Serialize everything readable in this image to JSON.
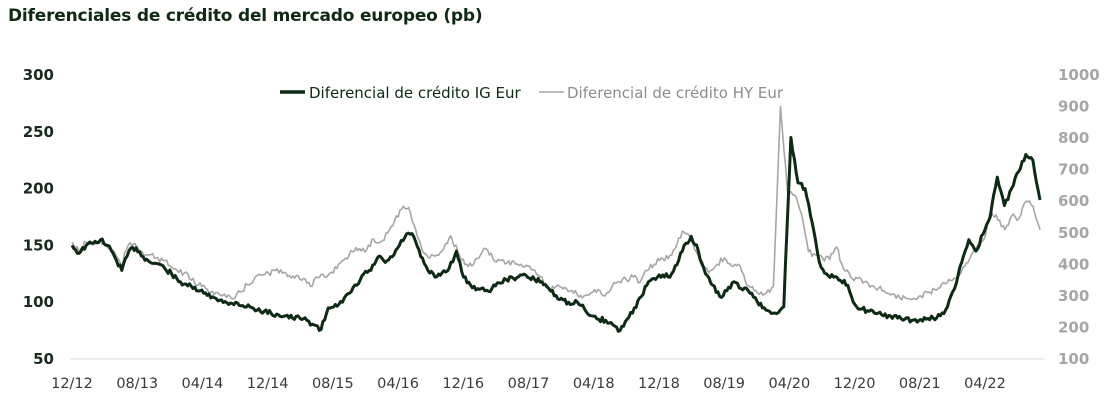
{
  "title": "Diferenciales de crédito del mercado europeo (pb)",
  "colors": {
    "ig": "#0d2a14",
    "hy": "#a6a6a6",
    "axis": "#d9d9d9",
    "title": "#0f2a14"
  },
  "chart_data": {
    "type": "line",
    "title": "Diferenciales de crédito del mercado europeo (pb)",
    "xlabel": "",
    "ylabel_left": "",
    "ylabel_right": "",
    "legend_position": "top-center",
    "grid": false,
    "x_tick_labels": [
      "12/12",
      "08/13",
      "04/14",
      "12/14",
      "08/15",
      "04/16",
      "12/16",
      "08/17",
      "04/18",
      "12/18",
      "08/19",
      "04/20",
      "12/20",
      "08/21",
      "04/22"
    ],
    "y_left": {
      "range": [
        50,
        300
      ],
      "ticks": [
        "50",
        "100",
        "150",
        "200",
        "250",
        "300"
      ]
    },
    "y_right": {
      "range": [
        100,
        1000
      ],
      "ticks": [
        "100",
        "200",
        "300",
        "400",
        "500",
        "600",
        "700",
        "800",
        "900",
        "1000"
      ]
    },
    "x_start": "12/12",
    "x_end": "11/22",
    "series": [
      {
        "name": "Diferencial de crédito IG Eur",
        "axis": "left",
        "values": [
          150,
          143,
          150,
          152,
          155,
          150,
          140,
          128,
          145,
          148,
          140,
          135,
          134,
          130,
          125,
          118,
          116,
          112,
          110,
          106,
          104,
          102,
          98,
          100,
          97,
          96,
          93,
          92,
          90,
          89,
          88,
          86,
          86,
          84,
          80,
          76,
          95,
          98,
          100,
          108,
          115,
          125,
          128,
          140,
          135,
          140,
          150,
          160,
          158,
          140,
          128,
          122,
          126,
          130,
          145,
          122,
          115,
          112,
          110,
          112,
          117,
          120,
          121,
          124,
          122,
          120,
          118,
          112,
          106,
          102,
          98,
          100,
          94,
          88,
          85,
          84,
          80,
          75,
          85,
          95,
          105,
          118,
          120,
          124,
          122,
          133,
          150,
          158,
          145,
          125,
          115,
          105,
          110,
          118,
          112,
          110,
          104,
          95,
          92,
          90,
          96,
          245,
          205,
          200,
          170,
          135,
          125,
          122,
          119,
          115,
          98,
          94,
          92,
          90,
          88,
          88,
          86,
          85,
          84,
          84,
          85,
          86,
          88,
          96,
          112,
          135,
          155,
          145,
          160,
          175,
          210,
          185,
          200,
          215,
          230,
          225,
          190
        ]
      },
      {
        "name": "Diferencial de crédito HY Eur",
        "axis": "right",
        "values": [
          470,
          440,
          470,
          462,
          475,
          455,
          440,
          395,
          460,
          465,
          440,
          430,
          420,
          412,
          395,
          380,
          372,
          350,
          335,
          325,
          315,
          305,
          295,
          290,
          312,
          335,
          355,
          365,
          372,
          380,
          372,
          365,
          365,
          355,
          330,
          358,
          360,
          375,
          400,
          420,
          440,
          450,
          445,
          480,
          470,
          500,
          540,
          575,
          580,
          510,
          440,
          420,
          430,
          450,
          490,
          440,
          400,
          395,
          420,
          450,
          418,
          412,
          404,
          410,
          400,
          394,
          380,
          360,
          318,
          330,
          322,
          315,
          305,
          300,
          310,
          320,
          300,
          330,
          345,
          352,
          360,
          345,
          380,
          400,
          420,
          418,
          450,
          505,
          490,
          440,
          390,
          380,
          400,
          420,
          395,
          400,
          345,
          330,
          305,
          310,
          330,
          900,
          630,
          620,
          560,
          440,
          430,
          420,
          415,
          455,
          385,
          360,
          355,
          345,
          332,
          325,
          310,
          305,
          295,
          292,
          292,
          300,
          310,
          320,
          338,
          352,
          355,
          390,
          420,
          455,
          480,
          570,
          540,
          510,
          555,
          545,
          600,
          585,
          510
        ]
      }
    ]
  }
}
